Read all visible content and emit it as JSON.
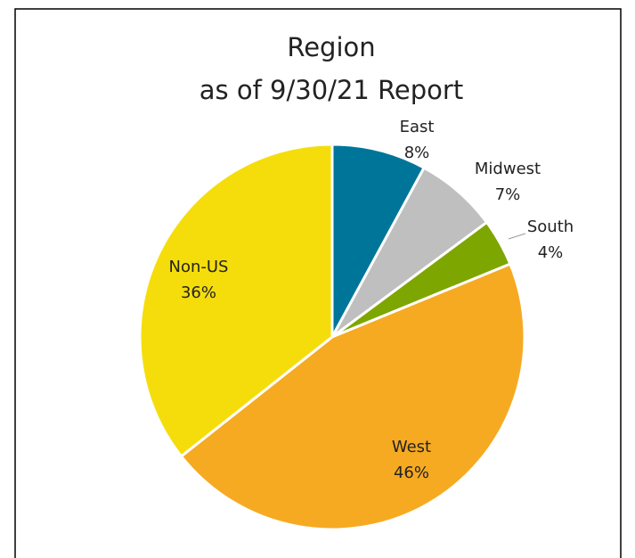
{
  "chart_data": {
    "type": "pie",
    "title": [
      "Region",
      "as of 9/30/21 Report"
    ],
    "categories": [
      "East",
      "Midwest",
      "South",
      "West",
      "Non-US"
    ],
    "values": [
      8,
      7,
      4,
      46,
      36
    ],
    "value_labels": [
      "8%",
      "7%",
      "4%",
      "46%",
      "36%"
    ],
    "colors": [
      "#00759a",
      "#bfbfbf",
      "#7da600",
      "#f6aa22",
      "#f5dd0b"
    ]
  }
}
